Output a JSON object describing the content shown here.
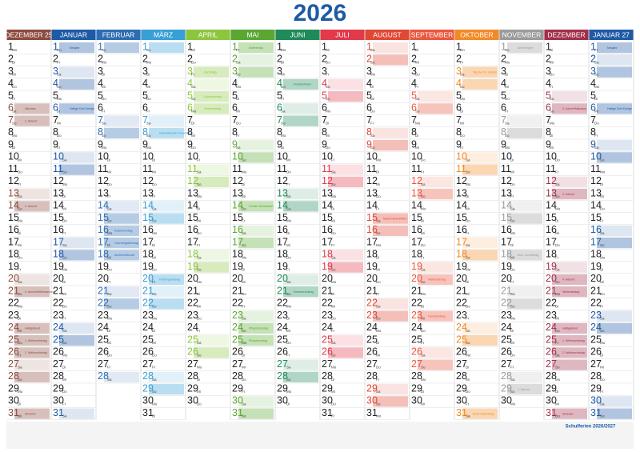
{
  "header": {
    "year": "2026",
    "school_holidays_title": "Schulferien 2026/2027"
  },
  "months": [
    {
      "name": "DEZEMBER 25",
      "color": "#8c4b3e",
      "days": [
        1,
        2,
        3,
        4,
        5,
        6,
        7,
        8,
        9,
        10,
        11,
        12,
        13,
        14,
        15,
        16,
        17,
        18,
        19,
        20,
        21,
        22,
        23,
        24,
        25,
        26,
        27,
        28,
        29,
        30,
        31
      ],
      "weekdays": [
        "Mo",
        "Di",
        "Mi",
        "Do",
        "Fr",
        "Sa",
        "So",
        "Mo",
        "Di",
        "Mi",
        "Do",
        "Fr",
        "Sa",
        "So",
        "Mo",
        "Di",
        "Mi",
        "Do",
        "Fr",
        "Sa",
        "So",
        "Mo",
        "Di",
        "Mi",
        "Do",
        "Fr",
        "Sa",
        "So",
        "Mo",
        "Di",
        "Mi"
      ],
      "notes": [
        {
          "day": 6,
          "text": "Nikolaus"
        },
        {
          "day": 7,
          "text": "2. Advent"
        },
        {
          "day": 14,
          "text": "3. Advent"
        },
        {
          "day": 21,
          "text": "4. Advent/Winteranfang"
        },
        {
          "day": 24,
          "text": "Heiligabend"
        },
        {
          "day": 25,
          "text": "1. Weihnachtstag"
        },
        {
          "day": 26,
          "text": "2. Weihnachtstag"
        },
        {
          "day": 31,
          "text": "Silvester"
        }
      ]
    },
    {
      "name": "JANUAR",
      "color": "#1f5aa6",
      "days": [
        1,
        2,
        3,
        4,
        5,
        6,
        7,
        8,
        9,
        10,
        11,
        12,
        13,
        14,
        15,
        16,
        17,
        18,
        19,
        20,
        21,
        22,
        23,
        24,
        25,
        26,
        27,
        28,
        29,
        30,
        31
      ],
      "weekdays": [
        "Do",
        "Fr",
        "Sa",
        "So",
        "Mo",
        "Di",
        "Mi",
        "Do",
        "Fr",
        "Sa",
        "So",
        "Mo",
        "Di",
        "Mi",
        "Do",
        "Fr",
        "Sa",
        "So",
        "Mo",
        "Di",
        "Mi",
        "Do",
        "Fr",
        "Sa",
        "So",
        "Mo",
        "Di",
        "Mi",
        "Do",
        "Fr",
        "Sa"
      ],
      "notes": [
        {
          "day": 1,
          "text": "Neujahr"
        },
        {
          "day": 6,
          "text": "Heilige Drei Könige"
        }
      ]
    },
    {
      "name": "FEBRUAR",
      "color": "#2e6db3",
      "days": [
        1,
        2,
        3,
        4,
        5,
        6,
        7,
        8,
        9,
        10,
        11,
        12,
        13,
        14,
        15,
        16,
        17,
        18,
        19,
        20,
        21,
        22,
        23,
        24,
        25,
        26,
        27,
        28
      ],
      "weekdays": [
        "So",
        "Mo",
        "Di",
        "Mi",
        "Do",
        "Fr",
        "Sa",
        "So",
        "Mo",
        "Di",
        "Mi",
        "Do",
        "Fr",
        "Sa",
        "So",
        "Mo",
        "Di",
        "Mi",
        "Do",
        "Fr",
        "Sa",
        "So",
        "Mo",
        "Di",
        "Mi",
        "Do",
        "Fr",
        "Sa"
      ],
      "notes": [
        {
          "day": 16,
          "text": "Rosenmontag"
        },
        {
          "day": 17,
          "text": "Faschingsdienstag"
        },
        {
          "day": 18,
          "text": "Aschermittwoch"
        }
      ]
    },
    {
      "name": "MÄRZ",
      "color": "#38a0d6",
      "days": [
        1,
        2,
        3,
        4,
        5,
        6,
        7,
        8,
        9,
        10,
        11,
        12,
        13,
        14,
        15,
        16,
        17,
        18,
        19,
        20,
        21,
        22,
        23,
        24,
        25,
        26,
        27,
        28,
        29,
        30,
        31
      ],
      "weekdays": [
        "So",
        "Mo",
        "Di",
        "Mi",
        "Do",
        "Fr",
        "Sa",
        "So",
        "Mo",
        "Di",
        "Mi",
        "Do",
        "Fr",
        "Sa",
        "So",
        "Mo",
        "Di",
        "Mi",
        "Do",
        "Fr",
        "Sa",
        "So",
        "Mo",
        "Di",
        "Mi",
        "Do",
        "Fr",
        "Sa",
        "So",
        "Mo",
        "Di"
      ],
      "notes": [
        {
          "day": 8,
          "text": "Internationaler Frauentag"
        },
        {
          "day": 20,
          "text": "Frühlingsanfang"
        }
      ]
    },
    {
      "name": "APRIL",
      "color": "#8cc63f",
      "days": [
        1,
        2,
        3,
        4,
        5,
        6,
        7,
        8,
        9,
        10,
        11,
        12,
        13,
        14,
        15,
        16,
        17,
        18,
        19,
        20,
        21,
        22,
        23,
        24,
        25,
        26,
        27,
        28,
        29,
        30
      ],
      "weekdays": [
        "Mi",
        "Do",
        "Fr",
        "Sa",
        "So",
        "Mo",
        "Di",
        "Mi",
        "Do",
        "Fr",
        "Sa",
        "So",
        "Mo",
        "Di",
        "Mi",
        "Do",
        "Fr",
        "Sa",
        "So",
        "Mo",
        "Di",
        "Mi",
        "Do",
        "Fr",
        "Sa",
        "So",
        "Mo",
        "Di",
        "Mi",
        "Do"
      ],
      "notes": [
        {
          "day": 3,
          "text": "Karfreitag"
        },
        {
          "day": 5,
          "text": "Ostersonntag"
        },
        {
          "day": 6,
          "text": "Ostermontag"
        }
      ]
    },
    {
      "name": "MAI",
      "color": "#5aa832",
      "days": [
        1,
        2,
        3,
        4,
        5,
        6,
        7,
        8,
        9,
        10,
        11,
        12,
        13,
        14,
        15,
        16,
        17,
        18,
        19,
        20,
        21,
        22,
        23,
        24,
        25,
        26,
        27,
        28,
        29,
        30,
        31
      ],
      "weekdays": [
        "Fr",
        "Sa",
        "So",
        "Mo",
        "Di",
        "Mi",
        "Do",
        "Fr",
        "Sa",
        "So",
        "Mo",
        "Di",
        "Mi",
        "Do",
        "Fr",
        "Sa",
        "So",
        "Mo",
        "Di",
        "Mi",
        "Do",
        "Fr",
        "Sa",
        "So",
        "Mo",
        "Di",
        "Mi",
        "Do",
        "Fr",
        "Sa",
        "So"
      ],
      "notes": [
        {
          "day": 1,
          "text": "Maifeiertag"
        },
        {
          "day": 14,
          "text": "Christi Himmelfahrt"
        },
        {
          "day": 24,
          "text": "Pfingstsonntag"
        },
        {
          "day": 25,
          "text": "Pfingstmontag"
        }
      ]
    },
    {
      "name": "JUNI",
      "color": "#1f8a5a",
      "days": [
        1,
        2,
        3,
        4,
        5,
        6,
        7,
        8,
        9,
        10,
        11,
        12,
        13,
        14,
        15,
        16,
        17,
        18,
        19,
        20,
        21,
        22,
        23,
        24,
        25,
        26,
        27,
        28,
        29,
        30
      ],
      "weekdays": [
        "Mo",
        "Di",
        "Mi",
        "Do",
        "Fr",
        "Sa",
        "So",
        "Mo",
        "Di",
        "Mi",
        "Do",
        "Fr",
        "Sa",
        "So",
        "Mo",
        "Di",
        "Mi",
        "Do",
        "Fr",
        "Sa",
        "So",
        "Mo",
        "Di",
        "Mi",
        "Do",
        "Fr",
        "Sa",
        "So",
        "Mo",
        "Di"
      ],
      "notes": [
        {
          "day": 4,
          "text": "Fronleichnam"
        },
        {
          "day": 21,
          "text": "Sommeranfang"
        }
      ]
    },
    {
      "name": "JULI",
      "color": "#e2394b",
      "days": [
        1,
        2,
        3,
        4,
        5,
        6,
        7,
        8,
        9,
        10,
        11,
        12,
        13,
        14,
        15,
        16,
        17,
        18,
        19,
        20,
        21,
        22,
        23,
        24,
        25,
        26,
        27,
        28,
        29,
        30,
        31
      ],
      "weekdays": [
        "Mi",
        "Do",
        "Fr",
        "Sa",
        "So",
        "Mo",
        "Di",
        "Mi",
        "Do",
        "Fr",
        "Sa",
        "So",
        "Mo",
        "Di",
        "Mi",
        "Do",
        "Fr",
        "Sa",
        "So",
        "Mo",
        "Di",
        "Mi",
        "Do",
        "Fr",
        "Sa",
        "So",
        "Mo",
        "Di",
        "Mi",
        "Do",
        "Fr"
      ],
      "notes": []
    },
    {
      "name": "AUGUST",
      "color": "#e04836",
      "days": [
        1,
        2,
        3,
        4,
        5,
        6,
        7,
        8,
        9,
        10,
        11,
        12,
        13,
        14,
        15,
        16,
        17,
        18,
        19,
        20,
        21,
        22,
        23,
        24,
        25,
        26,
        27,
        28,
        29,
        30,
        31
      ],
      "weekdays": [
        "Sa",
        "So",
        "Mo",
        "Di",
        "Mi",
        "Do",
        "Fr",
        "Sa",
        "So",
        "Mo",
        "Di",
        "Mi",
        "Do",
        "Fr",
        "Sa",
        "So",
        "Mo",
        "Di",
        "Mi",
        "Do",
        "Fr",
        "Sa",
        "So",
        "Mo",
        "Di",
        "Mi",
        "Do",
        "Fr",
        "Sa",
        "So",
        "Mo"
      ],
      "notes": [
        {
          "day": 15,
          "text": "Mariä Himmelfahrt"
        }
      ]
    },
    {
      "name": "SEPTEMBER",
      "color": "#e9573f",
      "days": [
        1,
        2,
        3,
        4,
        5,
        6,
        7,
        8,
        9,
        10,
        11,
        12,
        13,
        14,
        15,
        16,
        17,
        18,
        19,
        20,
        21,
        22,
        23,
        24,
        25,
        26,
        27,
        28,
        29,
        30
      ],
      "weekdays": [
        "Di",
        "Mi",
        "Do",
        "Fr",
        "Sa",
        "So",
        "Mo",
        "Di",
        "Mi",
        "Do",
        "Fr",
        "Sa",
        "So",
        "Mo",
        "Di",
        "Mi",
        "Do",
        "Fr",
        "Sa",
        "So",
        "Mo",
        "Di",
        "Mi",
        "Do",
        "Fr",
        "Sa",
        "So",
        "Mo",
        "Di",
        "Mi"
      ],
      "notes": [
        {
          "day": 20,
          "text": "Weltkindertag"
        },
        {
          "day": 23,
          "text": "Herbstanfang"
        }
      ]
    },
    {
      "name": "OKTOBER",
      "color": "#f28a26",
      "days": [
        1,
        2,
        3,
        4,
        5,
        6,
        7,
        8,
        9,
        10,
        11,
        12,
        13,
        14,
        15,
        16,
        17,
        18,
        19,
        20,
        21,
        22,
        23,
        24,
        25,
        26,
        27,
        28,
        29,
        30,
        31
      ],
      "weekdays": [
        "Do",
        "Fr",
        "Sa",
        "So",
        "Mo",
        "Di",
        "Mi",
        "Do",
        "Fr",
        "Sa",
        "So",
        "Mo",
        "Di",
        "Mi",
        "Do",
        "Fr",
        "Sa",
        "So",
        "Mo",
        "Di",
        "Mi",
        "Do",
        "Fr",
        "Sa",
        "So",
        "Mo",
        "Di",
        "Mi",
        "Do",
        "Fr",
        "Sa"
      ],
      "notes": [
        {
          "day": 3,
          "text": "Tag der Dt. Einheit"
        },
        {
          "day": 31,
          "text": "Reformationstag"
        }
      ]
    },
    {
      "name": "NOVEMBER",
      "color": "#9b9b9b",
      "days": [
        1,
        2,
        3,
        4,
        5,
        6,
        7,
        8,
        9,
        10,
        11,
        12,
        13,
        14,
        15,
        16,
        17,
        18,
        19,
        20,
        21,
        22,
        23,
        24,
        25,
        26,
        27,
        28,
        29,
        30
      ],
      "weekdays": [
        "So",
        "Mo",
        "Di",
        "Mi",
        "Do",
        "Fr",
        "Sa",
        "So",
        "Mo",
        "Di",
        "Mi",
        "Do",
        "Fr",
        "Sa",
        "So",
        "Mo",
        "Di",
        "Mi",
        "Do",
        "Fr",
        "Sa",
        "So",
        "Mo",
        "Di",
        "Mi",
        "Do",
        "Fr",
        "Sa",
        "So",
        "Mo"
      ],
      "notes": [
        {
          "day": 1,
          "text": "Allerheiligen"
        },
        {
          "day": 18,
          "text": "Buß- und Bettag"
        },
        {
          "day": 29,
          "text": "1. Advent"
        }
      ]
    },
    {
      "name": "DEZEMBER",
      "color": "#a2304b",
      "days": [
        1,
        2,
        3,
        4,
        5,
        6,
        7,
        8,
        9,
        10,
        11,
        12,
        13,
        14,
        15,
        16,
        17,
        18,
        19,
        20,
        21,
        22,
        23,
        24,
        25,
        26,
        27,
        28,
        29,
        30,
        31
      ],
      "weekdays": [
        "Di",
        "Mi",
        "Do",
        "Fr",
        "Sa",
        "So",
        "Mo",
        "Di",
        "Mi",
        "Do",
        "Fr",
        "Sa",
        "So",
        "Mo",
        "Di",
        "Mi",
        "Do",
        "Fr",
        "Sa",
        "So",
        "Mo",
        "Di",
        "Mi",
        "Do",
        "Fr",
        "Sa",
        "So",
        "Mo",
        "Di",
        "Mi",
        "Do"
      ],
      "notes": [
        {
          "day": 6,
          "text": "2. Advent/Nikolaus"
        },
        {
          "day": 13,
          "text": "3. Advent"
        },
        {
          "day": 20,
          "text": "4. Advent"
        },
        {
          "day": 21,
          "text": "Winteranfang"
        },
        {
          "day": 24,
          "text": "Heiligabend"
        },
        {
          "day": 25,
          "text": "1. Weihnachtstag"
        },
        {
          "day": 26,
          "text": "2. Weihnachtstag"
        },
        {
          "day": 31,
          "text": "Silvester"
        }
      ]
    },
    {
      "name": "JANUAR 27",
      "color": "#1f5aa6",
      "days": [
        1,
        2,
        3,
        4,
        5,
        6,
        7,
        8,
        9,
        10,
        11,
        12,
        13,
        14,
        15,
        16,
        17,
        18,
        19,
        20,
        21,
        22,
        23,
        24,
        25,
        26,
        27,
        28,
        29,
        30,
        31
      ],
      "weekdays": [
        "Fr",
        "Sa",
        "So",
        "Mo",
        "Di",
        "Mi",
        "Do",
        "Fr",
        "Sa",
        "So",
        "Mo",
        "Di",
        "Mi",
        "Do",
        "Fr",
        "Sa",
        "So",
        "Mo",
        "Di",
        "Mi",
        "Do",
        "Fr",
        "Sa",
        "So",
        "Mo",
        "Di",
        "Mi",
        "Do",
        "Fr",
        "Sa",
        "So"
      ],
      "notes": [
        {
          "day": 1,
          "text": "Neujahr"
        },
        {
          "day": 6,
          "text": "Heilige Drei Könige"
        }
      ]
    }
  ]
}
